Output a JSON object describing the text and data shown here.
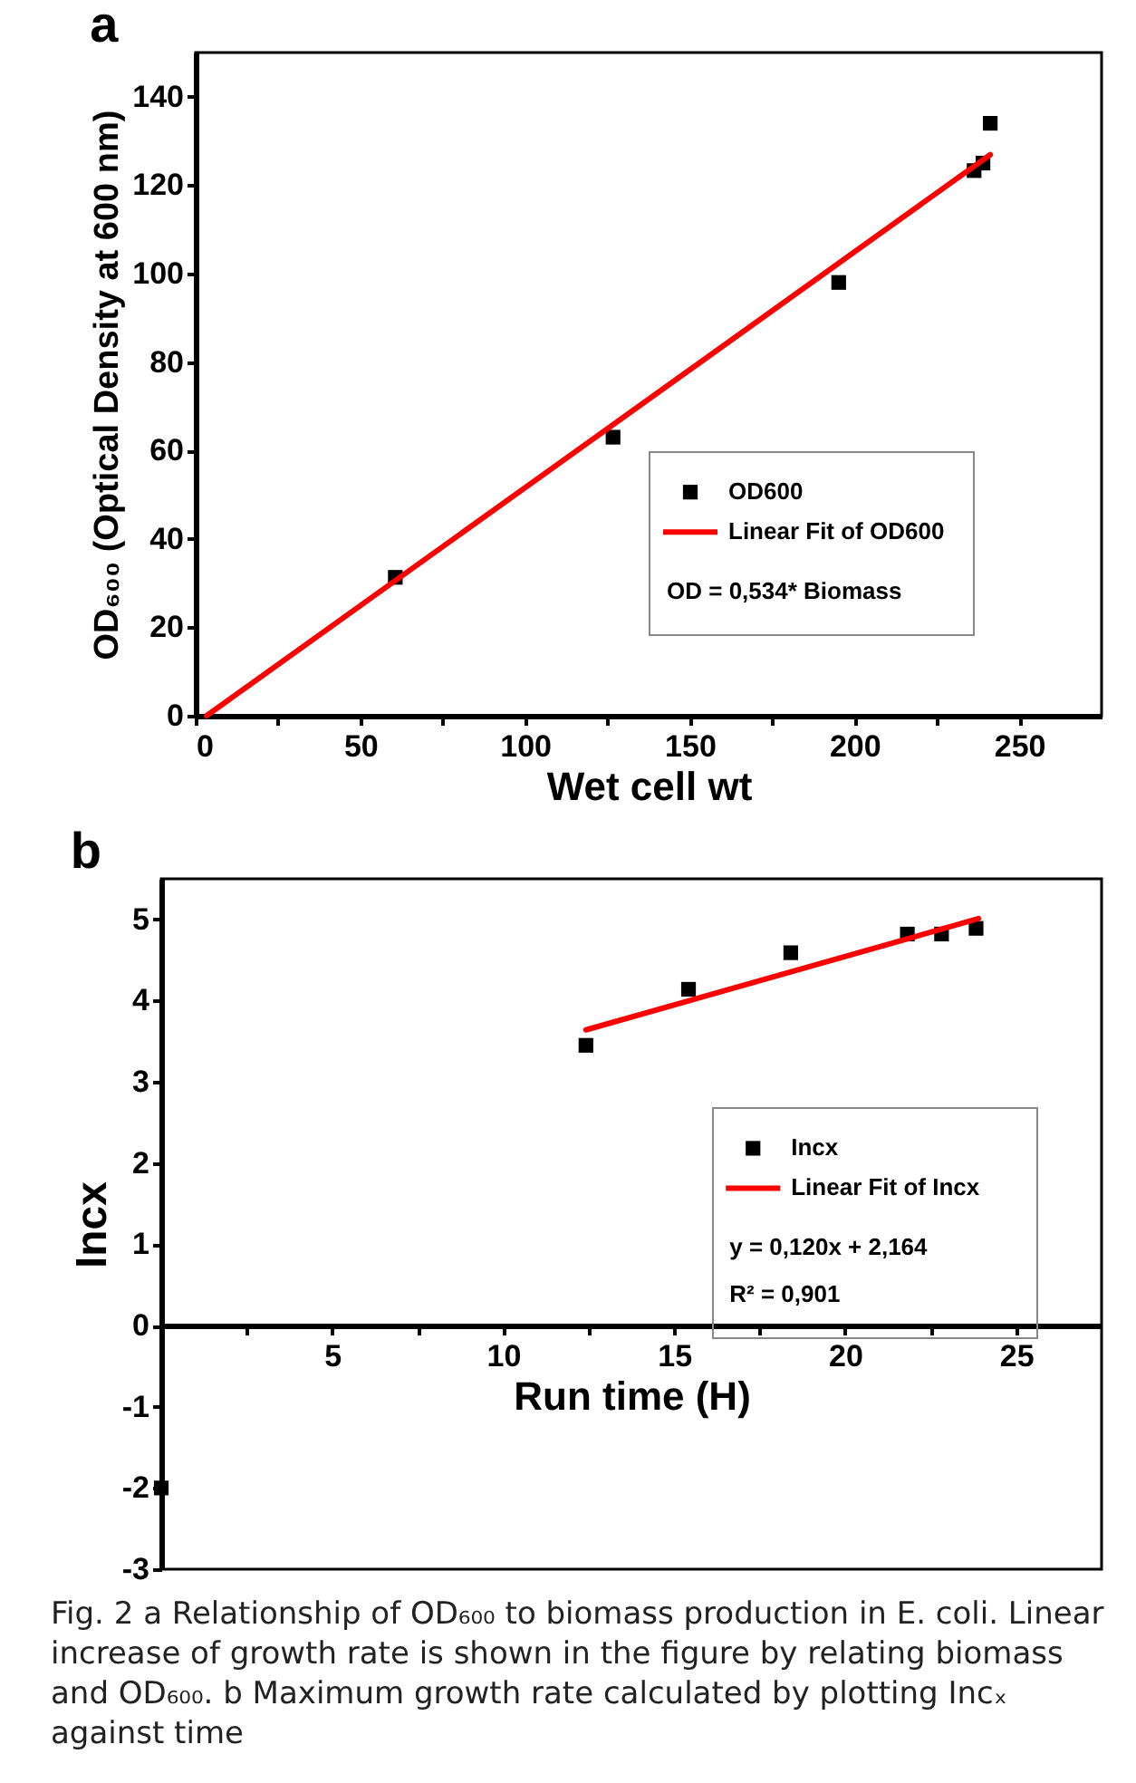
{
  "chart_data": [
    {
      "type": "scatter",
      "title": "a",
      "xlabel": "Wet cell wt",
      "ylabel": "OD₆₀₀ (Optical Density at 600 nm)",
      "legend": "bottom right",
      "xlim": [
        0,
        275
      ],
      "xticks": [
        0,
        {
          "value": 25,
          "label": null
        },
        50,
        {
          "value": 75,
          "label": null
        },
        100,
        {
          "value": 125,
          "label": null
        },
        150,
        {
          "value": 175,
          "label": null
        },
        200,
        {
          "value": 225,
          "label": null
        },
        250
      ],
      "ylim": [
        0,
        150
      ],
      "yticks": [
        0,
        20,
        40,
        60,
        80,
        100,
        120,
        140
      ],
      "series": [
        {
          "name": "OD600",
          "marker": "square",
          "color": "#000000",
          "x": [
            60.6,
            126.7,
            195.2,
            236.3,
            239,
            241.2
          ],
          "values": [
            31.3,
            63,
            98,
            123.3,
            125,
            134
          ]
        },
        {
          "name": "Linear Fit of OD600",
          "type": "line",
          "color": "#ff0000",
          "x": [
            3.3,
            241.2
          ],
          "values": [
            0,
            126.9
          ]
        }
      ],
      "annotations": [
        "OD = 0,534* Biomass"
      ]
    },
    {
      "type": "scatter",
      "title": "b",
      "xlabel": "Run time (H)",
      "ylabel": "Incx",
      "legend": "right",
      "xlim": [
        0,
        27.5
      ],
      "xticks": [
        {
          "value": 0,
          "label": null
        },
        {
          "value": 2.5,
          "label": null
        },
        5,
        {
          "value": 7.5,
          "label": null
        },
        10,
        {
          "value": 12.5,
          "label": null
        },
        15,
        {
          "value": 17.5,
          "label": null
        },
        20,
        {
          "value": 22.5,
          "label": null
        },
        25
      ],
      "ylim": [
        -3,
        5.5
      ],
      "yticks": [
        -3,
        -2,
        -1,
        0,
        1,
        2,
        3,
        4,
        5
      ],
      "series": [
        {
          "name": "Incx",
          "marker": "square",
          "color": "#000000",
          "x": [
            0,
            12.42,
            15.42,
            18.41,
            21.82,
            22.82,
            23.83
          ],
          "values": [
            -2,
            3.45,
            4.14,
            4.59,
            4.82,
            4.82,
            4.89
          ]
        },
        {
          "name": "Linear Fit of Incx",
          "type": "line",
          "color": "#ff0000",
          "x": [
            12.42,
            23.9
          ],
          "values": [
            3.64,
            5.01
          ]
        }
      ],
      "annotations": [
        "y = 0,120x + 2,164",
        "R² = 0,901",
        "Fig. 2 a Relationship of OD₆₀₀ to biomass production in E. coli. Linear increase of growth rate is shown in the figure by relating biomass and OD₆₀₀. b Maximum growth rate calculated by plotting Incₓ against time"
      ]
    }
  ]
}
